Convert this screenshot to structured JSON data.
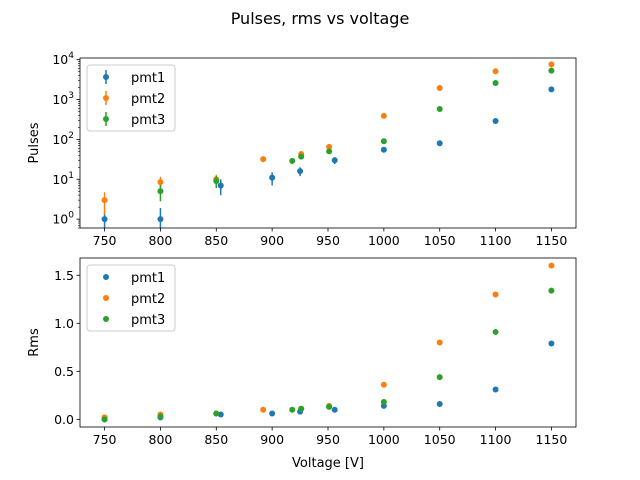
{
  "figure": {
    "suptitle": "Pulses, rms vs voltage"
  },
  "chart_data": [
    {
      "type": "scatter",
      "title": "",
      "xlabel": "",
      "ylabel": "Pulses",
      "yscale": "log",
      "xlim": [
        728,
        1172
      ],
      "ylim": [
        0.6,
        11000
      ],
      "xticks": [
        750,
        800,
        850,
        900,
        950,
        1000,
        1050,
        1100,
        1150
      ],
      "yticks": [
        1,
        10,
        100,
        1000,
        10000
      ],
      "ytick_labels": [
        {
          "base": "10",
          "exp": "0"
        },
        {
          "base": "10",
          "exp": "1"
        },
        {
          "base": "10",
          "exp": "2"
        },
        {
          "base": "10",
          "exp": "3"
        },
        {
          "base": "10",
          "exp": "4"
        }
      ],
      "legend": "upper-left",
      "error_bars": true,
      "series": [
        {
          "name": "pmt1",
          "color": "#1f77b4",
          "x": [
            750,
            800,
            854,
            900,
            925,
            956,
            1000,
            1050,
            1100,
            1150
          ],
          "y": [
            1,
            1,
            7,
            11,
            16,
            30,
            55,
            80,
            290,
            1800
          ],
          "err": [
            0.5,
            0.9,
            3,
            4,
            4,
            6,
            0,
            0,
            0,
            0
          ]
        },
        {
          "name": "pmt2",
          "color": "#ff7f0e",
          "x": [
            750,
            800,
            850,
            892,
            926,
            951,
            1000,
            1050,
            1100,
            1150
          ],
          "y": [
            3,
            8.5,
            10,
            32,
            43,
            65,
            390,
            1950,
            5100,
            7600
          ],
          "err": [
            1.7,
            3,
            3,
            5,
            5,
            6,
            0,
            0,
            0,
            0
          ]
        },
        {
          "name": "pmt3",
          "color": "#2ca02c",
          "x": [
            750,
            800,
            850,
            918,
            926,
            951,
            1000,
            1050,
            1100,
            1150
          ],
          "y": [
            0,
            5,
            9,
            29,
            37,
            50,
            90,
            580,
            2600,
            5300
          ],
          "err": [
            0,
            2.2,
            3,
            5,
            5,
            6,
            0,
            0,
            0,
            0
          ]
        }
      ]
    },
    {
      "type": "scatter",
      "title": "",
      "xlabel": "Voltage [V]",
      "ylabel": "Rms",
      "yscale": "linear",
      "xlim": [
        728,
        1172
      ],
      "ylim": [
        -0.08,
        1.68
      ],
      "xticks": [
        750,
        800,
        850,
        900,
        950,
        1000,
        1050,
        1100,
        1150
      ],
      "yticks": [
        0.0,
        0.5,
        1.0,
        1.5
      ],
      "ytick_labels": [
        "0.0",
        "0.5",
        "1.0",
        "1.5"
      ],
      "legend": "upper-left",
      "series": [
        {
          "name": "pmt1",
          "color": "#1f77b4",
          "x": [
            750,
            800,
            854,
            900,
            925,
            956,
            1000,
            1050,
            1100,
            1150
          ],
          "y": [
            0.0,
            0.02,
            0.05,
            0.06,
            0.08,
            0.1,
            0.14,
            0.16,
            0.31,
            0.79
          ]
        },
        {
          "name": "pmt2",
          "color": "#ff7f0e",
          "x": [
            750,
            800,
            850,
            892,
            926,
            951,
            1000,
            1050,
            1100,
            1150
          ],
          "y": [
            0.02,
            0.05,
            0.06,
            0.1,
            0.11,
            0.14,
            0.36,
            0.8,
            1.3,
            1.6
          ]
        },
        {
          "name": "pmt3",
          "color": "#2ca02c",
          "x": [
            750,
            800,
            850,
            918,
            926,
            951,
            1000,
            1050,
            1100,
            1150
          ],
          "y": [
            0.0,
            0.03,
            0.06,
            0.1,
            0.11,
            0.13,
            0.18,
            0.44,
            0.91,
            1.34
          ]
        }
      ]
    }
  ]
}
